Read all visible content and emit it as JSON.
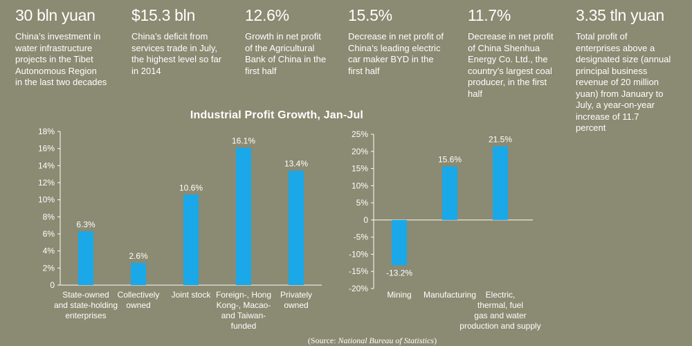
{
  "stats": [
    {
      "value": "30 bln yuan",
      "desc": [
        "China’s investment in",
        "water infrastructure",
        "projects in the Tibet",
        "Autonomous Region",
        "in the last two decades"
      ]
    },
    {
      "value": "$15.3 bln",
      "desc": [
        "China’s deficit from",
        "services trade in July,",
        "the highest level so far",
        "in 2014"
      ]
    },
    {
      "value": "12.6%",
      "desc": [
        "Growth in net profit",
        "of the Agricultural",
        "Bank of China in the",
        "first half"
      ]
    },
    {
      "value": "15.5%",
      "desc": [
        "Decrease in net profit of",
        "China’s leading electric",
        "car maker BYD in the",
        "first half"
      ]
    },
    {
      "value": "11.7%",
      "desc": [
        "Decrease in net profit",
        "of China Shenhua",
        "Energy Co. Ltd., the",
        "country’s largest coal",
        "producer, in the first",
        "half"
      ]
    },
    {
      "value": "3.35 tln yuan",
      "desc": [
        "Total profit of",
        "enterprises above a",
        "designated size (annual",
        "principal business",
        "revenue of 20 million",
        "yuan) from January to",
        "July, a year-on-year",
        "increase of 11.7",
        "percent"
      ]
    }
  ],
  "source": {
    "prefix": "(Source: ",
    "name": "National Bureau of Statistics",
    "suffix": ")"
  },
  "colors": {
    "bar": "#1aa8e8",
    "axis": "#ffffff",
    "background": "#8b8a72"
  },
  "chart_data": [
    {
      "type": "bar",
      "title": "Industrial Profit Growth, Jan-Jul",
      "xlabel": "",
      "ylabel": "",
      "ylim": [
        0,
        18
      ],
      "yticks": [
        "0",
        "2%",
        "4%",
        "6%",
        "8%",
        "10%",
        "12%",
        "14%",
        "16%",
        "18%"
      ],
      "categories": [
        [
          "State-owned",
          "and state-holding",
          "enterprises"
        ],
        [
          "Collectively",
          "owned"
        ],
        [
          "Joint stock"
        ],
        [
          "Foreign-, Hong",
          "Kong-, Macao-",
          "and Taiwan-",
          "funded"
        ],
        [
          "Privately",
          "owned"
        ]
      ],
      "values": [
        6.3,
        2.6,
        10.6,
        16.1,
        13.4
      ],
      "data_labels": [
        "6.3%",
        "2.6%",
        "10.6%",
        "16.1%",
        "13.4%"
      ],
      "grid": false,
      "legend": "none"
    },
    {
      "type": "bar",
      "title": "",
      "xlabel": "",
      "ylabel": "",
      "ylim": [
        -20,
        25
      ],
      "yticks": [
        "-20%",
        "-15%",
        "-10%",
        "-5%",
        "0",
        "5%",
        "10%",
        "15%",
        "20%",
        "25%"
      ],
      "categories": [
        [
          "Mining"
        ],
        [
          "Manufacturing"
        ],
        [
          "Electric,",
          "thermal, fuel",
          "gas and water",
          "production and supply"
        ]
      ],
      "values": [
        -13.2,
        15.6,
        21.5
      ],
      "data_labels": [
        "-13.2%",
        "15.6%",
        "21.5%"
      ],
      "grid": false,
      "legend": "none"
    }
  ]
}
